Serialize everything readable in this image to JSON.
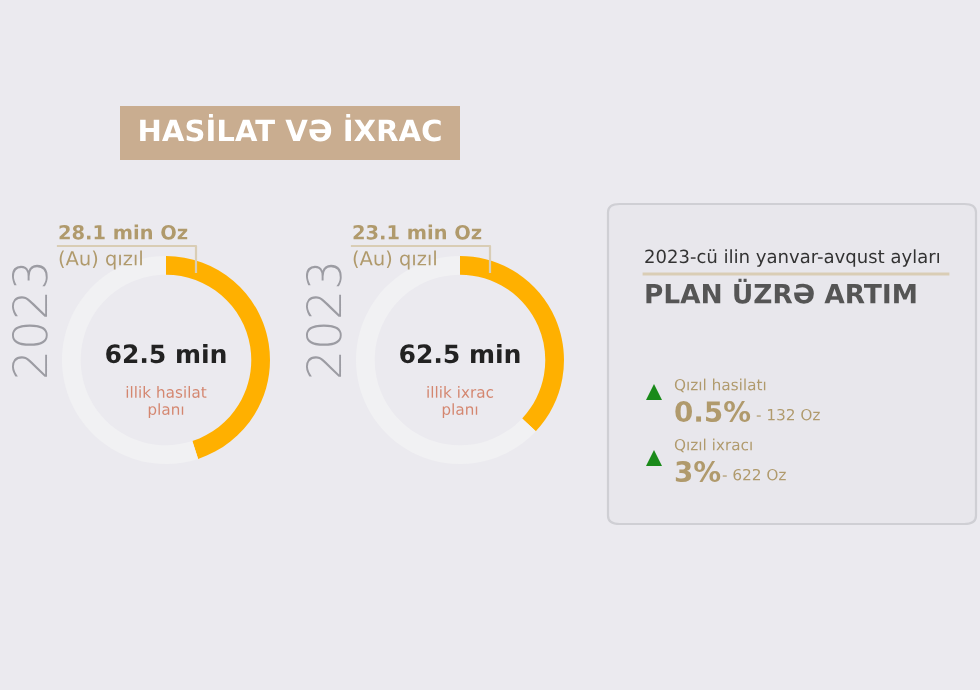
{
  "chart_data": [
    {
      "type": "donut",
      "title": "HASİLAT VƏ İXRAC",
      "categories": [
        null,
        null
      ],
      "values": [
        45,
        55
      ],
      "colors": [
        "#ffb000",
        "#f1f1f3"
      ],
      "annotations": [
        "2023",
        "28.1 min Oz",
        "(Au) qızıl",
        "62.5 min",
        "illik hasilat\nplanı"
      ]
    },
    {
      "type": "donut",
      "categories": [
        null,
        null
      ],
      "values": [
        37,
        63
      ],
      "colors": [
        "#ffb000",
        "#f1f1f3"
      ],
      "annotations": [
        "2023",
        "23.1 min Oz",
        "(Au) qızıl",
        "62.5 min",
        "illik ixrac\nplanı"
      ]
    },
    {
      "type": "other",
      "title": "2023-cü ilin yanvar-avqust ayları",
      "subtitle": "PLAN ÜZRƏ ARTIM",
      "annotations": [
        "Qızıl hasilatı",
        "0.5%",
        "- 132 Oz",
        "Qızıl ixracı",
        "3%",
        "- 622 Oz"
      ]
    }
  ]
}
